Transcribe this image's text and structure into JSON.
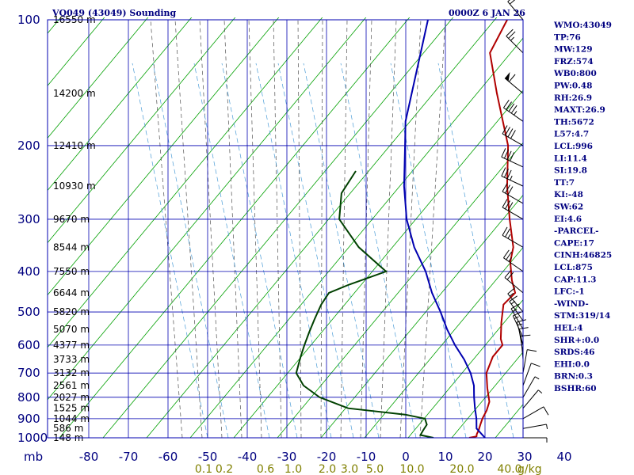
{
  "header": {
    "station": "VQ049 (43049) Sounding",
    "time": "0000Z  6 JAN 26"
  },
  "chart_data": {
    "type": "line",
    "y_unit_label": "mb",
    "x_unit_label": "g/kg",
    "pressure_ticks": [
      100,
      200,
      300,
      400,
      500,
      600,
      700,
      800,
      900,
      1000
    ],
    "temperature_ticks": [
      -80,
      -70,
      -60,
      -50,
      -40,
      -30,
      -20,
      -10,
      0,
      10,
      20,
      30,
      40
    ],
    "mixing_ratio_ticks": [
      "0.1",
      "0.2",
      "0.6",
      "1.0",
      "2.0",
      "3.0",
      "5.0",
      "10.0",
      "20.0",
      "40.0"
    ],
    "height_labels": [
      {
        "p": 100,
        "label": "16550 m"
      },
      {
        "p": 150,
        "label": "14200 m"
      },
      {
        "p": 200,
        "label": "12410 m"
      },
      {
        "p": 250,
        "label": "10930 m"
      },
      {
        "p": 300,
        "label": "9670 m"
      },
      {
        "p": 350,
        "label": "8544 m"
      },
      {
        "p": 400,
        "label": "7550 m"
      },
      {
        "p": 450,
        "label": "6644 m"
      },
      {
        "p": 500,
        "label": "5820 m"
      },
      {
        "p": 550,
        "label": "5070 m"
      },
      {
        "p": 600,
        "label": "4377 m"
      },
      {
        "p": 650,
        "label": "3733 m"
      },
      {
        "p": 700,
        "label": "3132 m"
      },
      {
        "p": 750,
        "label": "2561 m"
      },
      {
        "p": 800,
        "label": "2027 m"
      },
      {
        "p": 850,
        "label": "1525 m"
      },
      {
        "p": 900,
        "label": "1044 m"
      },
      {
        "p": 950,
        "label": "586 m"
      },
      {
        "p": 1000,
        "label": "148 m"
      }
    ],
    "series": [
      {
        "key": "temperature",
        "color": "#b00000",
        "points": [
          [
            100,
            -80
          ],
          [
            120,
            -76
          ],
          [
            150,
            -64
          ],
          [
            200,
            -48
          ],
          [
            250,
            -38
          ],
          [
            300,
            -29
          ],
          [
            350,
            -21
          ],
          [
            380,
            -18
          ],
          [
            420,
            -13
          ],
          [
            450,
            -9
          ],
          [
            480,
            -9
          ],
          [
            530,
            -5
          ],
          [
            580,
            -1
          ],
          [
            600,
            1
          ],
          [
            640,
            1.5
          ],
          [
            700,
            4
          ],
          [
            760,
            8
          ],
          [
            820,
            12
          ],
          [
            860,
            13.5
          ],
          [
            900,
            14.5
          ],
          [
            930,
            15.5
          ],
          [
            960,
            16.5
          ],
          [
            980,
            17
          ],
          [
            992,
            17.5
          ],
          [
            1000,
            16
          ]
        ]
      },
      {
        "key": "dewpoint",
        "color": "#004000",
        "points": [
          [
            230,
            -80
          ],
          [
            260,
            -78
          ],
          [
            300,
            -72
          ],
          [
            350,
            -60
          ],
          [
            400,
            -47
          ],
          [
            430,
            -53
          ],
          [
            450,
            -56
          ],
          [
            480,
            -55
          ],
          [
            520,
            -53
          ],
          [
            560,
            -51
          ],
          [
            600,
            -49
          ],
          [
            640,
            -47
          ],
          [
            700,
            -44
          ],
          [
            750,
            -39
          ],
          [
            800,
            -32
          ],
          [
            850,
            -22
          ],
          [
            880,
            -6
          ],
          [
            900,
            0
          ],
          [
            930,
            2
          ],
          [
            960,
            2.5
          ],
          [
            985,
            3
          ],
          [
            1000,
            7
          ]
        ]
      },
      {
        "key": "parcel",
        "color": "#0000b0",
        "points": [
          [
            100,
            -100
          ],
          [
            175,
            -80
          ],
          [
            200,
            -74
          ],
          [
            250,
            -64
          ],
          [
            300,
            -55
          ],
          [
            350,
            -46
          ],
          [
            400,
            -37
          ],
          [
            450,
            -30
          ],
          [
            500,
            -23
          ],
          [
            550,
            -17
          ],
          [
            600,
            -11
          ],
          [
            650,
            -5
          ],
          [
            700,
            0
          ],
          [
            750,
            4
          ],
          [
            800,
            7
          ],
          [
            850,
            10
          ],
          [
            900,
            13
          ],
          [
            950,
            15.5
          ],
          [
            1000,
            20
          ]
        ]
      }
    ],
    "wind_barbs": [
      {
        "p": 100,
        "dir": 320,
        "spd": 20
      },
      {
        "p": 120,
        "dir": 315,
        "spd": 25
      },
      {
        "p": 150,
        "dir": 310,
        "spd": 60
      },
      {
        "p": 175,
        "dir": 305,
        "spd": 45
      },
      {
        "p": 200,
        "dir": 300,
        "spd": 40
      },
      {
        "p": 225,
        "dir": 295,
        "spd": 40
      },
      {
        "p": 250,
        "dir": 295,
        "spd": 35
      },
      {
        "p": 275,
        "dir": 300,
        "spd": 30
      },
      {
        "p": 300,
        "dir": 300,
        "spd": 30
      },
      {
        "p": 350,
        "dir": 300,
        "spd": 25
      },
      {
        "p": 400,
        "dir": 305,
        "spd": 25
      },
      {
        "p": 450,
        "dir": 310,
        "spd": 20
      },
      {
        "p": 500,
        "dir": 320,
        "spd": 15
      },
      {
        "p": 525,
        "dir": 325,
        "spd": 15
      },
      {
        "p": 550,
        "dir": 330,
        "spd": 15
      },
      {
        "p": 575,
        "dir": 335,
        "spd": 15
      },
      {
        "p": 600,
        "dir": 345,
        "spd": 15
      },
      {
        "p": 625,
        "dir": 350,
        "spd": 10
      },
      {
        "p": 650,
        "dir": 355,
        "spd": 10
      },
      {
        "p": 700,
        "dir": 10,
        "spd": 10
      },
      {
        "p": 750,
        "dir": 20,
        "spd": 10
      },
      {
        "p": 800,
        "dir": 30,
        "spd": 5
      },
      {
        "p": 850,
        "dir": 40,
        "spd": 5
      },
      {
        "p": 900,
        "dir": 60,
        "spd": 10
      },
      {
        "p": 950,
        "dir": 80,
        "spd": 5
      },
      {
        "p": 1000,
        "dir": 90,
        "spd": 5
      }
    ]
  },
  "stats": [
    "WMO:43049",
    "TP:76",
    "MW:129",
    "FRZ:574",
    "WB0:800",
    "PW:0.48",
    "RH:26.9",
    "MAXT:26.9",
    "TH:5672",
    "L57:4.7",
    "LCL:996",
    "LI:11.4",
    "SI:19.8",
    "TT:7",
    "KI:-48",
    "SW:62",
    "EI:4.6",
    "-PARCEL-",
    "CAPE:17",
    "CINH:46825",
    "LCL:875",
    "CAP:11.3",
    "LFC:-1",
    "-WIND-",
    "STM:319/14",
    "HEL:4",
    "SHR+:0.0",
    "SRDS:46",
    "EHI:0.0",
    "BRN:0.3",
    "BSHR:60"
  ]
}
